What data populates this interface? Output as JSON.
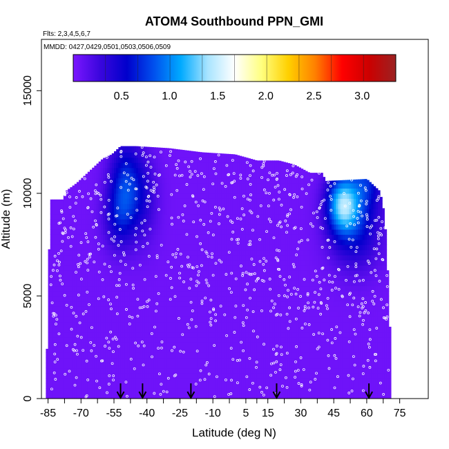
{
  "chart_data": {
    "type": "heatmap",
    "title": "ATOM4 Southbound PPN_GMI",
    "flights_label": "Flts: 2,3,4,5,6,7",
    "dates_label": "MMDD: 0427,0429,0501,0503,0506,0509",
    "xlabel": "Latitude (deg N)",
    "ylabel": "Altitude (m)",
    "xlim": [
      -88,
      88
    ],
    "ylim": [
      0,
      17500
    ],
    "x_ticks": [
      -85,
      -70,
      -55,
      -40,
      -25,
      -10,
      5,
      15,
      30,
      45,
      60,
      75
    ],
    "x_tick_labels": [
      "-85",
      "-70",
      "-55",
      "-40",
      "-25",
      "-10",
      "5",
      "15",
      "30",
      "45",
      "60",
      "75"
    ],
    "y_ticks": [
      0,
      5000,
      10000,
      15000
    ],
    "y_tick_labels": [
      "0",
      "5000",
      "10000",
      "15000"
    ],
    "colorbar": {
      "min": 0,
      "max": 3.35,
      "ticks": [
        0.5,
        1.0,
        1.5,
        2.0,
        2.5,
        3.0
      ],
      "tick_labels": [
        "0.5",
        "1.0",
        "1.5",
        "2.0",
        "2.5",
        "3.0"
      ],
      "colors": [
        "#7b16ff",
        "#3a06dd",
        "#0000cc",
        "#0050ee",
        "#00aaff",
        "#a8e4ff",
        "#ffffff",
        "#ffff80",
        "#ffd000",
        "#ff8000",
        "#ff0000",
        "#cc0000",
        "#9b2222"
      ]
    },
    "background_value": 0.05,
    "profile_top": [
      [
        -86,
        0
      ],
      [
        -84,
        9700
      ],
      [
        -78,
        9700
      ],
      [
        -77,
        10100
      ],
      [
        -72,
        10500
      ],
      [
        -67,
        11000
      ],
      [
        -60,
        11700
      ],
      [
        -56,
        11900
      ],
      [
        -52,
        12300
      ],
      [
        -45,
        12300
      ],
      [
        -30,
        12200
      ],
      [
        -15,
        12000
      ],
      [
        0,
        11900
      ],
      [
        10,
        11600
      ],
      [
        20,
        11600
      ],
      [
        27,
        11400
      ],
      [
        34,
        11000
      ],
      [
        40,
        11000
      ],
      [
        41,
        10600
      ],
      [
        60,
        10700
      ],
      [
        66,
        10100
      ],
      [
        68,
        9000
      ],
      [
        69,
        7500
      ],
      [
        70,
        5000
      ],
      [
        71,
        2000
      ],
      [
        71,
        0
      ]
    ],
    "features": [
      {
        "lat": -50,
        "alt": 10500,
        "value": 0.6,
        "sigma_lat": 5,
        "sigma_alt": 1500
      },
      {
        "lat": -53,
        "alt": 8800,
        "value": 0.35,
        "sigma_lat": 5,
        "sigma_alt": 1100
      },
      {
        "lat": -42,
        "alt": 9800,
        "value": 0.3,
        "sigma_lat": 5,
        "sigma_alt": 1500
      },
      {
        "lat": 49,
        "alt": 9500,
        "value": 1.05,
        "sigma_lat": 5,
        "sigma_alt": 1000
      },
      {
        "lat": 55,
        "alt": 8600,
        "value": 0.55,
        "sigma_lat": 8,
        "sigma_alt": 1500
      },
      {
        "lat": 60,
        "alt": 10700,
        "value": 0.45,
        "sigma_lat": 5,
        "sigma_alt": 900
      }
    ],
    "arrows_lat": [
      -52,
      -42,
      -20,
      19,
      61
    ]
  }
}
